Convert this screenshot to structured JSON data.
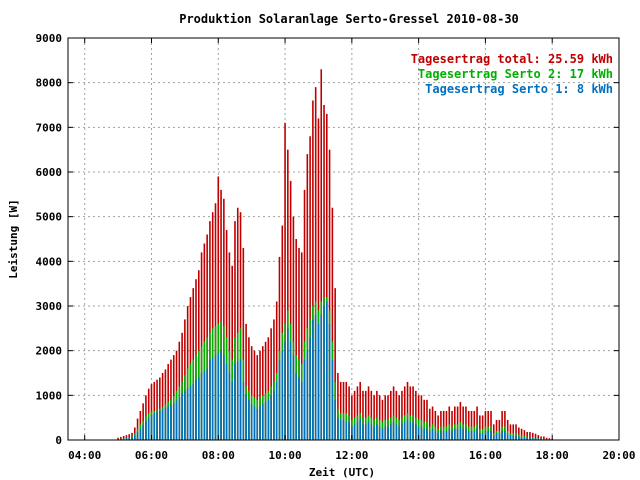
{
  "chart_data": {
    "type": "bar",
    "stacked": true,
    "title": "Produktion Solaranlage Serto-Gressel 2010-08-30",
    "xlabel": "Zeit (UTC)",
    "ylabel": "Leistung [W]",
    "xlim": [
      3.5,
      20.0
    ],
    "ylim": [
      0,
      9000
    ],
    "x_ticks": [
      "04:00",
      "06:00",
      "08:00",
      "10:00",
      "12:00",
      "14:00",
      "16:00",
      "18:00",
      "20:00"
    ],
    "y_ticks": [
      "0",
      "1000",
      "2000",
      "3000",
      "4000",
      "5000",
      "6000",
      "7000",
      "8000",
      "9000"
    ],
    "grid": true,
    "legend_position": "top-right",
    "legend": [
      {
        "label": "Tagesertrag total: 25.59 kWh",
        "color": "#c00000"
      },
      {
        "label": "Tagesertrag Serto 2: 17 kWh",
        "color": "#00b000"
      },
      {
        "label": "Tagesertrag Serto 1: 8 kWh",
        "color": "#0070c0"
      }
    ],
    "colors": {
      "total": "#c00000",
      "serto2": "#00b000",
      "serto1": "#0070c0"
    },
    "bars": {
      "time_hours": [
        5.0,
        5.083,
        5.167,
        5.25,
        5.333,
        5.417,
        5.5,
        5.583,
        5.667,
        5.75,
        5.833,
        5.917,
        6.0,
        6.083,
        6.167,
        6.25,
        6.333,
        6.417,
        6.5,
        6.583,
        6.667,
        6.75,
        6.833,
        6.917,
        7.0,
        7.083,
        7.167,
        7.25,
        7.333,
        7.417,
        7.5,
        7.583,
        7.667,
        7.75,
        7.833,
        7.917,
        8.0,
        8.083,
        8.167,
        8.25,
        8.333,
        8.417,
        8.5,
        8.583,
        8.667,
        8.75,
        8.833,
        8.917,
        9.0,
        9.083,
        9.167,
        9.25,
        9.333,
        9.417,
        9.5,
        9.583,
        9.667,
        9.75,
        9.833,
        9.917,
        10.0,
        10.083,
        10.167,
        10.25,
        10.333,
        10.417,
        10.5,
        10.583,
        10.667,
        10.75,
        10.833,
        10.917,
        11.0,
        11.083,
        11.167,
        11.25,
        11.333,
        11.417,
        11.5,
        11.583,
        11.667,
        11.75,
        11.833,
        11.917,
        12.0,
        12.083,
        12.167,
        12.25,
        12.333,
        12.417,
        12.5,
        12.583,
        12.667,
        12.75,
        12.833,
        12.917,
        13.0,
        13.083,
        13.167,
        13.25,
        13.333,
        13.417,
        13.5,
        13.583,
        13.667,
        13.75,
        13.833,
        13.917,
        14.0,
        14.083,
        14.167,
        14.25,
        14.333,
        14.417,
        14.5,
        14.583,
        14.667,
        14.75,
        14.833,
        14.917,
        15.0,
        15.083,
        15.167,
        15.25,
        15.333,
        15.417,
        15.5,
        15.583,
        15.667,
        15.75,
        15.833,
        15.917,
        16.0,
        16.083,
        16.167,
        16.25,
        16.333,
        16.417,
        16.5,
        16.583,
        16.667,
        16.75,
        16.833,
        16.917,
        17.0,
        17.083,
        17.167,
        17.25,
        17.333,
        17.417,
        17.5,
        17.583,
        17.667,
        17.75,
        17.833,
        17.917,
        18.0
      ],
      "serto1": [
        20,
        25,
        30,
        40,
        50,
        60,
        100,
        180,
        250,
        330,
        420,
        500,
        560,
        600,
        620,
        650,
        700,
        720,
        750,
        780,
        820,
        880,
        950,
        1050,
        1100,
        1150,
        1200,
        1250,
        1350,
        1400,
        1500,
        1550,
        1600,
        1800,
        1850,
        1900,
        1950,
        2000,
        1900,
        1700,
        1500,
        1300,
        1700,
        1750,
        1800,
        1300,
        1000,
        900,
        800,
        750,
        700,
        750,
        800,
        850,
        900,
        1000,
        1100,
        1300,
        1800,
        2000,
        2200,
        2500,
        2200,
        1900,
        1500,
        1400,
        1300,
        1800,
        2000,
        2300,
        2700,
        2800,
        2600,
        2800,
        3000,
        3100,
        2600,
        1800,
        900,
        500,
        450,
        450,
        400,
        400,
        300,
        350,
        400,
        450,
        350,
        350,
        400,
        350,
        300,
        350,
        300,
        250,
        300,
        300,
        350,
        400,
        350,
        300,
        350,
        400,
        450,
        400,
        400,
        350,
        300,
        300,
        250,
        250,
        200,
        250,
        200,
        150,
        200,
        200,
        200,
        250,
        200,
        250,
        250,
        300,
        250,
        250,
        200,
        200,
        200,
        250,
        150,
        150,
        200,
        200,
        200,
        100,
        150,
        150,
        200,
        200,
        150,
        100,
        100,
        100,
        80,
        70,
        60,
        50,
        50,
        50,
        40,
        30,
        20,
        20,
        10,
        10,
        5
      ],
      "serto2": [
        20,
        30,
        40,
        50,
        60,
        80,
        150,
        250,
        350,
        430,
        530,
        600,
        640,
        650,
        680,
        700,
        730,
        800,
        850,
        900,
        980,
        1100,
        1200,
        1300,
        1450,
        1600,
        1700,
        1800,
        1900,
        2000,
        2100,
        2200,
        2300,
        2400,
        2500,
        2550,
        2600,
        2650,
        2550,
        2300,
        2000,
        1800,
        2300,
        2400,
        2500,
        1800,
        1200,
        1100,
        1000,
        950,
        900,
        950,
        1000,
        1050,
        1100,
        1200,
        1300,
        1500,
        2000,
        2400,
        2600,
        2900,
        2600,
        2200,
        1900,
        1800,
        1700,
        2200,
        2500,
        2700,
        3000,
        3100,
        2900,
        3100,
        3200,
        3200,
        2900,
        2200,
        1300,
        700,
        600,
        600,
        600,
        550,
        450,
        500,
        550,
        600,
        500,
        500,
        550,
        500,
        450,
        500,
        450,
        400,
        450,
        450,
        500,
        550,
        500,
        450,
        500,
        550,
        600,
        550,
        550,
        500,
        450,
        450,
        400,
        400,
        300,
        350,
        300,
        250,
        300,
        300,
        300,
        350,
        300,
        350,
        350,
        400,
        350,
        350,
        300,
        300,
        300,
        350,
        250,
        250,
        300,
        300,
        300,
        150,
        200,
        200,
        300,
        300,
        200,
        150,
        150,
        150,
        120,
        100,
        90,
        70,
        70,
        60,
        50,
        40,
        30,
        30,
        20,
        15,
        5
      ],
      "total": [
        50,
        70,
        90,
        110,
        130,
        160,
        280,
        480,
        650,
        820,
        1000,
        1150,
        1250,
        1300,
        1350,
        1400,
        1500,
        1580,
        1700,
        1800,
        1900,
        2000,
        2200,
        2400,
        2700,
        3000,
        3200,
        3400,
        3600,
        3800,
        4200,
        4400,
        4600,
        4900,
        5100,
        5300,
        5900,
        5600,
        5400,
        4700,
        4200,
        3900,
        4900,
        5200,
        5100,
        4300,
        2600,
        2300,
        2100,
        2000,
        1900,
        2000,
        2100,
        2200,
        2300,
        2500,
        2700,
        3100,
        4100,
        4800,
        7100,
        6500,
        5800,
        5000,
        4500,
        4300,
        4200,
        5600,
        6400,
        6800,
        7600,
        7900,
        7200,
        8300,
        7500,
        7300,
        6500,
        5200,
        3400,
        1500,
        1300,
        1300,
        1300,
        1200,
        1000,
        1100,
        1200,
        1300,
        1100,
        1100,
        1200,
        1100,
        1000,
        1100,
        1000,
        900,
        1000,
        1000,
        1100,
        1200,
        1100,
        1000,
        1100,
        1200,
        1300,
        1200,
        1200,
        1100,
        1000,
        1000,
        900,
        900,
        700,
        750,
        650,
        550,
        650,
        650,
        650,
        750,
        650,
        750,
        750,
        850,
        750,
        750,
        650,
        650,
        650,
        750,
        550,
        550,
        650,
        650,
        650,
        350,
        450,
        450,
        650,
        650,
        450,
        350,
        350,
        350,
        280,
        250,
        220,
        180,
        180,
        160,
        140,
        110,
        80,
        80,
        50,
        40,
        20
      ]
    }
  }
}
